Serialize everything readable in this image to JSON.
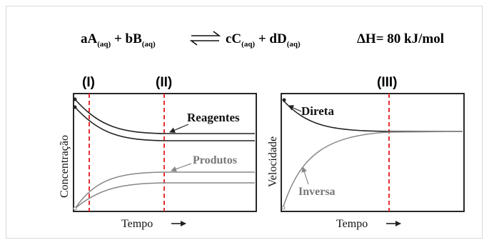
{
  "equation": {
    "left_1": "aA",
    "sub_1": "(aq)",
    "plus_1": " + bB",
    "sub_2": "(aq)",
    "right_1": "cC",
    "sub_3": "(aq)",
    "plus_2": " + dD",
    "sub_4": "(aq)",
    "enthalpy": "ΔH= 80 kJ/mol"
  },
  "markers": {
    "m1": "(I)",
    "m2": "(II)",
    "m3": "(III)"
  },
  "panel_left": {
    "ylabel": "Concentração",
    "xlabel": "Tempo",
    "label_reagentes": "Reagentes",
    "label_produtos": "Produtos"
  },
  "panel_right": {
    "ylabel": "Velocidade",
    "xlabel": "Tempo",
    "label_direta": "Direta",
    "label_inversa": "Inversa"
  },
  "colors": {
    "dash": "#e41a1c",
    "curve_dark": "#222222",
    "curve_gray": "#888888",
    "text_gray": "#777777"
  }
}
